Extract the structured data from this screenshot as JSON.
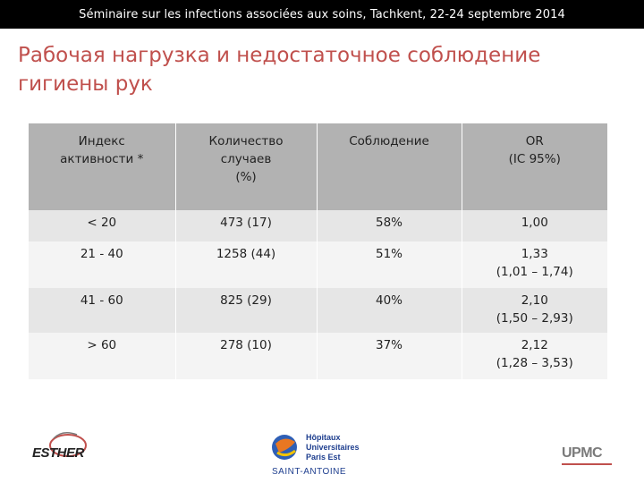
{
  "header": {
    "text": "Séminaire sur les infections associées aux soins, Tachkent, 22-24 septembre 2014"
  },
  "slide": {
    "title_line1": "Рабочая нагрузка и недостаточное соблюдение",
    "title_line2": "гигиены рук"
  },
  "table": {
    "columns": [
      {
        "lines": [
          "Индекс",
          "активности *"
        ]
      },
      {
        "lines": [
          "Количество",
          "случаев",
          "(%)"
        ]
      },
      {
        "lines": [
          "Соблюдение"
        ]
      },
      {
        "lines": [
          "OR",
          "(IC 95%)"
        ]
      }
    ],
    "rows": [
      {
        "index": "< 20",
        "cases": "473 (17)",
        "compliance": "58%",
        "or": "1,00",
        "ci": ""
      },
      {
        "index": "21 - 40",
        "cases": "1258 (44)",
        "compliance": "51%",
        "or": "1,33",
        "ci": "(1,01 – 1,74)"
      },
      {
        "index": "41 - 60",
        "cases": "825 (29)",
        "compliance": "40%",
        "or": "2,10",
        "ci": "(1,50 – 2,93)"
      },
      {
        "index": "> 60",
        "cases": "278 (10)",
        "compliance": "37%",
        "or": "2,12",
        "ci": "(1,28 – 3,53)"
      }
    ]
  },
  "footer": {
    "esther_logo_text": "ESTHER",
    "aphp_lines": [
      "Hôpitaux",
      "Universitaires",
      "Paris Est"
    ],
    "aphp_site": "SAINT-ANTOINE",
    "upmc_logo_text": "UPMC"
  },
  "colors": {
    "title": "#c0504d",
    "header_bg": "#000000",
    "table_header_bg": "#b2b2b2",
    "row_shaded": "#e6e6e6",
    "row_plain": "#f4f4f4"
  }
}
